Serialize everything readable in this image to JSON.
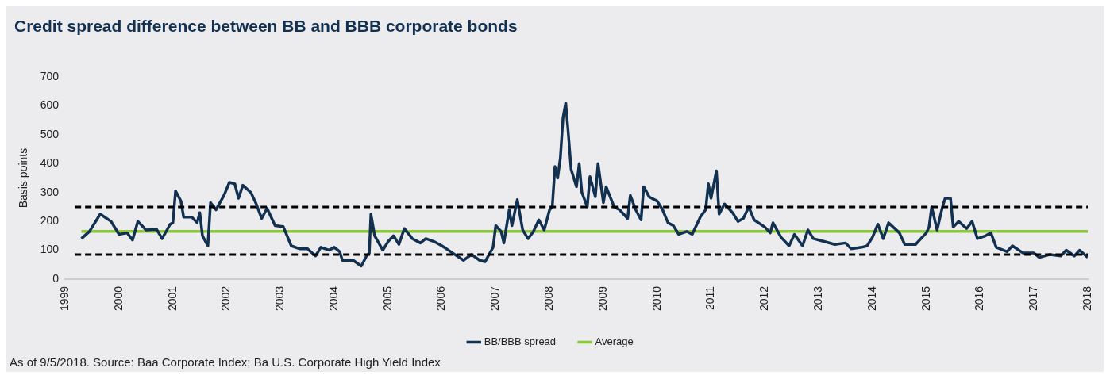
{
  "chart_data": {
    "type": "line",
    "title": "Credit spread difference between BB and BBB corporate bonds",
    "ylabel": "Basis points",
    "xlim": [
      1999,
      2018
    ],
    "xticks": [
      1999,
      2000,
      2001,
      2002,
      2003,
      2004,
      2005,
      2006,
      2007,
      2008,
      2009,
      2010,
      2011,
      2012,
      2013,
      2014,
      2015,
      2016,
      2017,
      2018
    ],
    "ylim": [
      0,
      700
    ],
    "yticks": [
      0,
      100,
      200,
      300,
      400,
      500,
      600,
      700
    ],
    "grid": false,
    "legend": "bottom",
    "marker": "none",
    "ref_lines": [
      {
        "axis": "y",
        "value": 250,
        "color": "#000000",
        "line_style": "dashed"
      },
      {
        "axis": "y",
        "value": 85,
        "color": "#000000",
        "line_style": "dashed"
      }
    ],
    "annotations": [
      "As of 9/5/2018. Source: Baa Corporate Index; Ba U.S. Corporate High Yield Index"
    ],
    "series": [
      {
        "name": "BB/BBB spread",
        "color": "#12304f",
        "x": [
          1999.3,
          1999.45,
          1999.65,
          1999.85,
          2000.0,
          2000.15,
          2000.25,
          2000.35,
          2000.5,
          2000.7,
          2000.8,
          2000.95,
          2001.0,
          2001.05,
          2001.15,
          2001.2,
          2001.35,
          2001.45,
          2001.5,
          2001.55,
          2001.65,
          2001.7,
          2001.8,
          2001.95,
          2002.05,
          2002.15,
          2002.22,
          2002.3,
          2002.45,
          2002.55,
          2002.65,
          2002.75,
          2002.9,
          2003.05,
          2003.2,
          2003.35,
          2003.5,
          2003.65,
          2003.75,
          2003.9,
          2004.0,
          2004.1,
          2004.15,
          2004.35,
          2004.5,
          2004.6,
          2004.65,
          2004.68,
          2004.75,
          2004.9,
          2005.0,
          2005.1,
          2005.2,
          2005.3,
          2005.45,
          2005.6,
          2005.7,
          2005.85,
          2006.0,
          2006.2,
          2006.4,
          2006.55,
          2006.7,
          2006.8,
          2006.95,
          2007.0,
          2007.1,
          2007.15,
          2007.25,
          2007.3,
          2007.4,
          2007.5,
          2007.6,
          2007.7,
          2007.8,
          2007.9,
          2008.0,
          2008.05,
          2008.1,
          2008.15,
          2008.2,
          2008.25,
          2008.3,
          2008.35,
          2008.4,
          2008.5,
          2008.55,
          2008.6,
          2008.7,
          2008.75,
          2008.85,
          2008.9,
          2009.0,
          2009.05,
          2009.2,
          2009.3,
          2009.45,
          2009.5,
          2009.6,
          2009.7,
          2009.75,
          2009.85,
          2010.0,
          2010.1,
          2010.2,
          2010.3,
          2010.4,
          2010.55,
          2010.65,
          2010.8,
          2010.9,
          2010.95,
          2011.0,
          2011.1,
          2011.15,
          2011.25,
          2011.4,
          2011.5,
          2011.6,
          2011.7,
          2011.8,
          2012.0,
          2012.1,
          2012.15,
          2012.3,
          2012.45,
          2012.55,
          2012.7,
          2012.8,
          2012.9,
          2013.1,
          2013.3,
          2013.5,
          2013.6,
          2013.8,
          2013.9,
          2014.0,
          2014.1,
          2014.2,
          2014.3,
          2014.5,
          2014.6,
          2014.8,
          2015.0,
          2015.05,
          2015.1,
          2015.2,
          2015.3,
          2015.35,
          2015.45,
          2015.5,
          2015.6,
          2015.75,
          2015.85,
          2015.95,
          2016.1,
          2016.2,
          2016.3,
          2016.5,
          2016.6,
          2016.8,
          2017.0,
          2017.1,
          2017.3,
          2017.5,
          2017.6,
          2017.75,
          2017.85,
          2018.0
        ],
        "values": [
          140,
          165,
          225,
          200,
          155,
          160,
          135,
          200,
          170,
          172,
          140,
          190,
          195,
          305,
          270,
          215,
          215,
          195,
          230,
          150,
          115,
          265,
          240,
          290,
          335,
          330,
          280,
          325,
          300,
          260,
          210,
          245,
          185,
          182,
          115,
          105,
          105,
          80,
          110,
          100,
          110,
          95,
          65,
          65,
          45,
          80,
          90,
          225,
          150,
          100,
          130,
          150,
          120,
          175,
          140,
          125,
          140,
          130,
          115,
          90,
          65,
          85,
          65,
          60,
          110,
          185,
          165,
          125,
          240,
          185,
          275,
          170,
          140,
          165,
          205,
          170,
          240,
          250,
          390,
          350,
          420,
          560,
          610,
          500,
          380,
          320,
          400,
          300,
          250,
          355,
          285,
          400,
          265,
          320,
          250,
          240,
          210,
          290,
          240,
          205,
          320,
          285,
          270,
          240,
          195,
          185,
          155,
          165,
          155,
          215,
          240,
          330,
          280,
          375,
          225,
          260,
          230,
          200,
          210,
          250,
          205,
          180,
          160,
          195,
          145,
          115,
          155,
          115,
          170,
          140,
          130,
          120,
          125,
          105,
          110,
          115,
          145,
          190,
          140,
          195,
          160,
          120,
          120,
          160,
          180,
          250,
          170,
          250,
          280,
          280,
          180,
          200,
          175,
          200,
          140,
          150,
          160,
          110,
          95,
          115,
          90,
          90,
          75,
          85,
          80,
          100,
          80,
          100,
          75
        ]
      },
      {
        "name": "Average",
        "color": "#8dc63f",
        "x": [
          1999.3,
          2018.0
        ],
        "values": [
          165,
          165
        ]
      }
    ]
  }
}
